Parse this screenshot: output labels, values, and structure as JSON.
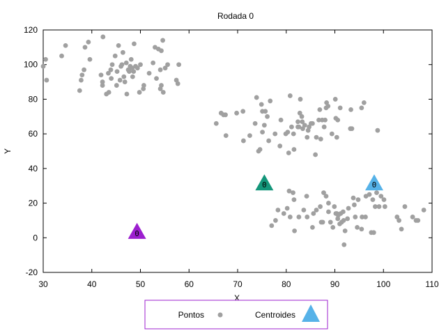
{
  "chart_data": {
    "type": "scatter",
    "title": "Rodada 0",
    "xlabel": "X",
    "ylabel": "Y",
    "xlim": [
      30,
      110
    ],
    "ylim": [
      -20,
      120
    ],
    "xticks": [
      30,
      40,
      50,
      60,
      70,
      80,
      90,
      100,
      110
    ],
    "yticks": [
      -20,
      0,
      20,
      40,
      60,
      80,
      100,
      120
    ],
    "grid": false,
    "legend_position": "bottom-center",
    "series": [
      {
        "name": "Pontos",
        "marker": "circle",
        "color": "#a0a0a0",
        "points": [
          [
            30,
            99
          ],
          [
            30.5,
            103
          ],
          [
            30.7,
            91
          ],
          [
            33.8,
            105
          ],
          [
            34.6,
            111
          ],
          [
            37.5,
            85
          ],
          [
            37.8,
            91
          ],
          [
            38,
            94
          ],
          [
            38.4,
            97
          ],
          [
            38.6,
            110
          ],
          [
            39.3,
            113
          ],
          [
            39.6,
            103
          ],
          [
            41.9,
            94
          ],
          [
            42.2,
            90
          ],
          [
            42.2,
            88
          ],
          [
            42.3,
            116
          ],
          [
            43,
            83
          ],
          [
            43.4,
            95
          ],
          [
            43.5,
            84
          ],
          [
            43.9,
            97
          ],
          [
            44,
            92
          ],
          [
            44.2,
            100
          ],
          [
            44.8,
            105
          ],
          [
            45.1,
            88
          ],
          [
            45.2,
            96
          ],
          [
            45.5,
            111
          ],
          [
            45.8,
            91
          ],
          [
            46,
            99
          ],
          [
            46.2,
            100
          ],
          [
            46.4,
            107
          ],
          [
            46.6,
            93
          ],
          [
            46.8,
            90
          ],
          [
            47.1,
            101
          ],
          [
            47.2,
            83
          ],
          [
            47.5,
            97
          ],
          [
            47.7,
            96
          ],
          [
            47.9,
            99
          ],
          [
            48.1,
            103
          ],
          [
            48.3,
            98
          ],
          [
            48.4,
            93
          ],
          [
            48.6,
            96
          ],
          [
            48.7,
            112
          ],
          [
            49,
            99
          ],
          [
            49.4,
            98
          ],
          [
            49.8,
            84
          ],
          [
            50,
            100
          ],
          [
            50.6,
            86
          ],
          [
            50.7,
            88
          ],
          [
            51.8,
            95
          ],
          [
            52.6,
            101
          ],
          [
            53,
            110
          ],
          [
            53.3,
            92
          ],
          [
            53.7,
            109
          ],
          [
            54.1,
            86
          ],
          [
            54.1,
            97
          ],
          [
            54.3,
            88
          ],
          [
            54.3,
            108
          ],
          [
            54.6,
            114
          ],
          [
            54.7,
            84
          ],
          [
            55.1,
            98
          ],
          [
            55.6,
            100
          ],
          [
            57.4,
            91
          ],
          [
            57.7,
            89
          ],
          [
            57.9,
            100
          ],
          [
            65.6,
            66
          ],
          [
            66.6,
            72
          ],
          [
            67.1,
            71
          ],
          [
            67.5,
            71
          ],
          [
            67.6,
            59
          ],
          [
            69.8,
            72
          ],
          [
            71.1,
            73
          ],
          [
            71.2,
            56
          ],
          [
            72.5,
            59
          ],
          [
            73.6,
            66
          ],
          [
            73.9,
            81
          ],
          [
            74.3,
            50
          ],
          [
            74.6,
            51
          ],
          [
            74.9,
            77
          ],
          [
            75.1,
            73
          ],
          [
            75.1,
            61
          ],
          [
            75.5,
            65
          ],
          [
            75.7,
            73
          ],
          [
            76.1,
            70
          ],
          [
            76.4,
            56
          ],
          [
            76.7,
            79
          ],
          [
            77.7,
            60
          ],
          [
            78.7,
            53
          ],
          [
            78.9,
            68
          ],
          [
            79.9,
            60
          ],
          [
            80.3,
            61
          ],
          [
            80.5,
            49
          ],
          [
            80.8,
            82
          ],
          [
            81.1,
            64
          ],
          [
            81.5,
            60
          ],
          [
            81.6,
            51
          ],
          [
            82.4,
            67
          ],
          [
            82.4,
            64
          ],
          [
            82.6,
            64
          ],
          [
            82.8,
            72
          ],
          [
            82.9,
            80
          ],
          [
            83.2,
            70
          ],
          [
            83.3,
            67
          ],
          [
            83.4,
            63
          ],
          [
            83.8,
            65
          ],
          [
            84.3,
            58
          ],
          [
            84.5,
            62
          ],
          [
            84.7,
            64
          ],
          [
            85.1,
            66
          ],
          [
            85.4,
            66
          ],
          [
            86,
            48
          ],
          [
            86.2,
            58
          ],
          [
            86.7,
            68
          ],
          [
            86.9,
            74
          ],
          [
            87.1,
            57
          ],
          [
            87.4,
            68
          ],
          [
            87.8,
            64
          ],
          [
            88,
            68
          ],
          [
            88.2,
            75
          ],
          [
            88.3,
            78
          ],
          [
            88.6,
            76
          ],
          [
            89.4,
            60
          ],
          [
            90.1,
            80
          ],
          [
            90.2,
            69
          ],
          [
            90.4,
            58
          ],
          [
            90.6,
            68
          ],
          [
            91.1,
            75
          ],
          [
            93.2,
            63
          ],
          [
            93.3,
            74
          ],
          [
            93.5,
            63
          ],
          [
            95.5,
            75
          ],
          [
            96,
            78
          ],
          [
            98.8,
            62
          ],
          [
            77,
            7
          ],
          [
            77.8,
            10
          ],
          [
            78.3,
            16
          ],
          [
            79.5,
            14
          ],
          [
            80.2,
            17
          ],
          [
            80.6,
            27
          ],
          [
            80.8,
            12
          ],
          [
            81.4,
            26
          ],
          [
            81.6,
            22
          ],
          [
            81.7,
            4
          ],
          [
            82.6,
            12
          ],
          [
            83.6,
            16
          ],
          [
            84.2,
            24
          ],
          [
            84.3,
            12
          ],
          [
            85.4,
            6
          ],
          [
            85.6,
            14
          ],
          [
            86.2,
            16
          ],
          [
            87,
            18
          ],
          [
            87.2,
            9
          ],
          [
            87.5,
            9
          ],
          [
            87.7,
            26
          ],
          [
            88.2,
            24
          ],
          [
            88.7,
            20
          ],
          [
            88.7,
            15
          ],
          [
            89.1,
            9
          ],
          [
            89.6,
            6
          ],
          [
            89.9,
            18
          ],
          [
            90.2,
            14
          ],
          [
            90.4,
            14
          ],
          [
            90.6,
            11
          ],
          [
            90.7,
            13
          ],
          [
            91,
            8
          ],
          [
            91.2,
            14
          ],
          [
            91.4,
            9
          ],
          [
            91.7,
            15
          ],
          [
            91.8,
            10
          ],
          [
            91.9,
            -4
          ],
          [
            92.1,
            4
          ],
          [
            92.6,
            11
          ],
          [
            92.8,
            17
          ],
          [
            93.8,
            23
          ],
          [
            94,
            19
          ],
          [
            94.2,
            12
          ],
          [
            94.6,
            6
          ],
          [
            94.8,
            22
          ],
          [
            95.5,
            5
          ],
          [
            95.6,
            12
          ],
          [
            96.3,
            12
          ],
          [
            96.4,
            24
          ],
          [
            97.1,
            25
          ],
          [
            97.5,
            3
          ],
          [
            97.8,
            22
          ],
          [
            98,
            3
          ],
          [
            98.3,
            18
          ],
          [
            98.6,
            26
          ],
          [
            99.1,
            18
          ],
          [
            99.5,
            24
          ],
          [
            100.1,
            22
          ],
          [
            100.3,
            18
          ],
          [
            102.8,
            12
          ],
          [
            103.2,
            10
          ],
          [
            103.7,
            5
          ],
          [
            104.4,
            18
          ],
          [
            106,
            12
          ],
          [
            106.7,
            10
          ],
          [
            107.1,
            10
          ],
          [
            108.3,
            16
          ]
        ]
      },
      {
        "name": "Centroides",
        "marker": "triangle",
        "points": [
          {
            "x": 49.3,
            "y": 3,
            "label": "0",
            "color": "#9c1fcf"
          },
          {
            "x": 75.5,
            "y": 31,
            "label": "0",
            "color": "#14967a"
          },
          {
            "x": 98.1,
            "y": 31,
            "label": "0",
            "color": "#56b2e8"
          }
        ],
        "legend_color": "#56b2e8"
      }
    ]
  }
}
